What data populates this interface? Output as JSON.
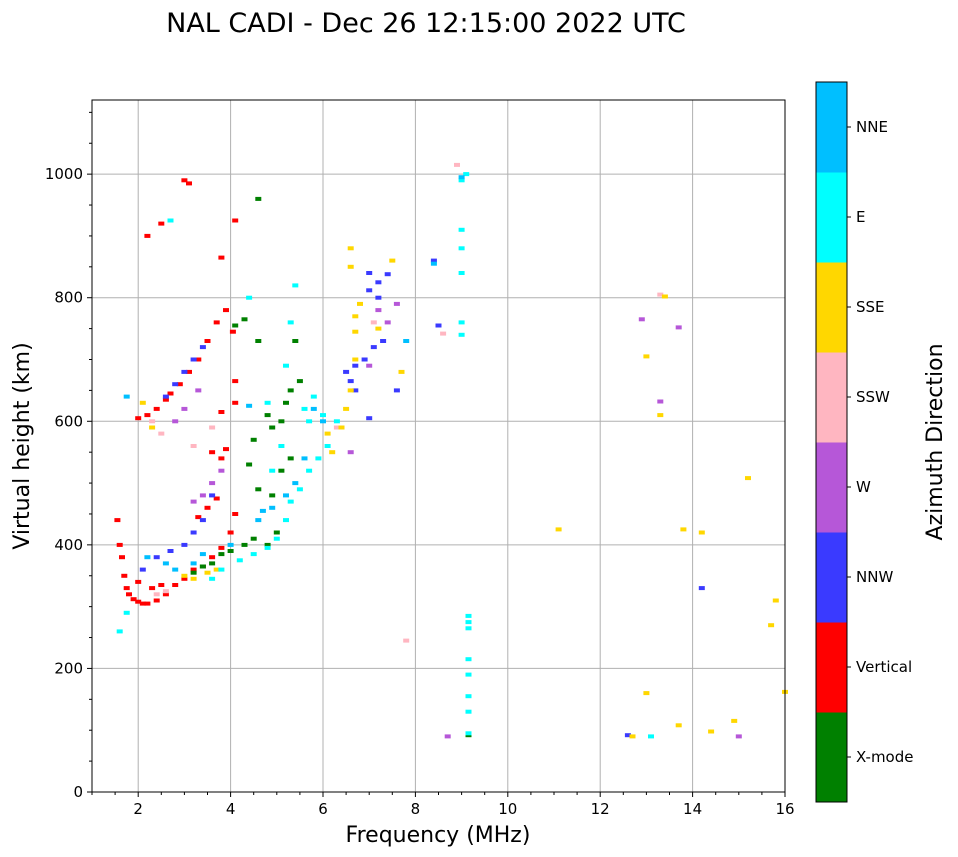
{
  "chart_data": {
    "type": "scatter",
    "title": "NAL CADI - Dec 26 12:15:00 2022 UTC",
    "xlabel": "Frequency (MHz)",
    "ylabel": "Virtual height (km)",
    "xlim": [
      1,
      16
    ],
    "ylim": [
      0,
      1120
    ],
    "xticks": [
      2,
      4,
      6,
      8,
      10,
      12,
      14,
      16
    ],
    "yticks": [
      0,
      200,
      400,
      600,
      800,
      1000
    ],
    "grid": true,
    "colorbar": {
      "label": "Azimuth Direction",
      "categories": [
        {
          "name": "X-mode",
          "color": "#008000"
        },
        {
          "name": "Vertical",
          "color": "#ff0000"
        },
        {
          "name": "NNW",
          "color": "#3a3aff"
        },
        {
          "name": "W",
          "color": "#b657d8"
        },
        {
          "name": "SSW",
          "color": "#ffb6c1"
        },
        {
          "name": "SSE",
          "color": "#ffd700"
        },
        {
          "name": "E",
          "color": "#00ffff"
        },
        {
          "name": "NNE",
          "color": "#00bfff"
        }
      ]
    },
    "series": [
      {
        "name": "Vertical",
        "points": [
          [
            1.55,
            440
          ],
          [
            1.6,
            400
          ],
          [
            1.65,
            380
          ],
          [
            1.7,
            350
          ],
          [
            1.75,
            330
          ],
          [
            1.8,
            320
          ],
          [
            1.9,
            312
          ],
          [
            2.0,
            308
          ],
          [
            2.1,
            305
          ],
          [
            2.2,
            305
          ],
          [
            2.4,
            310
          ],
          [
            2.6,
            320
          ],
          [
            2.8,
            335
          ],
          [
            3.0,
            345
          ],
          [
            3.2,
            360
          ],
          [
            3.4,
            365
          ],
          [
            3.6,
            380
          ],
          [
            3.8,
            395
          ],
          [
            4.0,
            420
          ],
          [
            4.1,
            450
          ],
          [
            2.0,
            605
          ],
          [
            2.2,
            610
          ],
          [
            2.4,
            620
          ],
          [
            2.6,
            635
          ],
          [
            2.7,
            645
          ],
          [
            2.9,
            660
          ],
          [
            3.1,
            680
          ],
          [
            3.3,
            700
          ],
          [
            3.5,
            730
          ],
          [
            3.7,
            760
          ],
          [
            3.9,
            780
          ],
          [
            3.6,
            550
          ],
          [
            3.8,
            540
          ],
          [
            3.9,
            555
          ],
          [
            3.8,
            615
          ],
          [
            4.1,
            630
          ],
          [
            4.1,
            665
          ],
          [
            4.05,
            745
          ],
          [
            4.1,
            925
          ],
          [
            3.0,
            990
          ],
          [
            3.1,
            985
          ],
          [
            2.5,
            920
          ],
          [
            2.2,
            900
          ],
          [
            3.8,
            865
          ],
          [
            3.3,
            445
          ],
          [
            3.5,
            460
          ],
          [
            3.7,
            475
          ],
          [
            2.0,
            340
          ],
          [
            2.3,
            330
          ],
          [
            2.5,
            335
          ]
        ]
      },
      {
        "name": "X-mode",
        "points": [
          [
            3.2,
            355
          ],
          [
            3.4,
            365
          ],
          [
            3.6,
            370
          ],
          [
            3.8,
            385
          ],
          [
            4.0,
            390
          ],
          [
            4.3,
            400
          ],
          [
            4.5,
            410
          ],
          [
            4.8,
            400
          ],
          [
            5.0,
            420
          ],
          [
            4.9,
            590
          ],
          [
            5.1,
            600
          ],
          [
            5.2,
            630
          ],
          [
            5.3,
            650
          ],
          [
            5.5,
            665
          ],
          [
            5.4,
            730
          ],
          [
            4.6,
            730
          ],
          [
            4.1,
            755
          ],
          [
            4.3,
            765
          ],
          [
            4.6,
            960
          ],
          [
            4.6,
            490
          ],
          [
            4.4,
            530
          ],
          [
            4.5,
            570
          ],
          [
            4.8,
            610
          ],
          [
            5.3,
            540
          ],
          [
            5.1,
            520
          ],
          [
            4.9,
            480
          ],
          [
            9.15,
            92
          ]
        ]
      },
      {
        "name": "NNW",
        "points": [
          [
            2.1,
            360
          ],
          [
            2.4,
            380
          ],
          [
            2.7,
            390
          ],
          [
            3.0,
            400
          ],
          [
            3.2,
            420
          ],
          [
            3.4,
            440
          ],
          [
            3.6,
            480
          ],
          [
            2.6,
            640
          ],
          [
            2.8,
            660
          ],
          [
            3.0,
            680
          ],
          [
            3.2,
            700
          ],
          [
            3.4,
            720
          ],
          [
            6.5,
            680
          ],
          [
            6.7,
            690
          ],
          [
            6.6,
            665
          ],
          [
            6.9,
            700
          ],
          [
            7.1,
            720
          ],
          [
            7.3,
            730
          ],
          [
            7.0,
            840
          ],
          [
            7.2,
            825
          ],
          [
            7.4,
            838
          ],
          [
            7.0,
            812
          ],
          [
            7.2,
            800
          ],
          [
            7.6,
            650
          ],
          [
            7.0,
            605
          ],
          [
            6.7,
            650
          ],
          [
            8.4,
            860
          ],
          [
            8.5,
            755
          ],
          [
            12.6,
            92
          ],
          [
            14.2,
            330
          ]
        ]
      },
      {
        "name": "W",
        "points": [
          [
            2.8,
            600
          ],
          [
            3.0,
            620
          ],
          [
            3.3,
            650
          ],
          [
            3.4,
            480
          ],
          [
            3.2,
            470
          ],
          [
            3.6,
            500
          ],
          [
            3.8,
            520
          ],
          [
            7.6,
            790
          ],
          [
            7.2,
            780
          ],
          [
            7.4,
            760
          ],
          [
            7.0,
            690
          ],
          [
            12.9,
            765
          ],
          [
            13.3,
            632
          ],
          [
            13.7,
            752
          ],
          [
            15.0,
            90
          ],
          [
            8.7,
            90
          ],
          [
            6.6,
            550
          ]
        ]
      },
      {
        "name": "SSW",
        "points": [
          [
            2.3,
            600
          ],
          [
            2.5,
            580
          ],
          [
            3.2,
            560
          ],
          [
            3.6,
            590
          ],
          [
            7.1,
            760
          ],
          [
            8.9,
            1015
          ],
          [
            7.8,
            245
          ],
          [
            8.6,
            742
          ],
          [
            13.3,
            805
          ],
          [
            6.3,
            590
          ],
          [
            2.4,
            320
          ],
          [
            2.6,
            325
          ]
        ]
      },
      {
        "name": "SSE",
        "points": [
          [
            2.1,
            630
          ],
          [
            2.3,
            590
          ],
          [
            3.0,
            350
          ],
          [
            3.2,
            345
          ],
          [
            3.5,
            355
          ],
          [
            3.7,
            360
          ],
          [
            6.2,
            550
          ],
          [
            6.4,
            590
          ],
          [
            6.5,
            620
          ],
          [
            6.6,
            650
          ],
          [
            6.7,
            700
          ],
          [
            6.7,
            745
          ],
          [
            6.8,
            790
          ],
          [
            6.6,
            880
          ],
          [
            7.5,
            860
          ],
          [
            7.2,
            750
          ],
          [
            7.7,
            680
          ],
          [
            11.1,
            425
          ],
          [
            13.0,
            705
          ],
          [
            13.3,
            610
          ],
          [
            13.4,
            802
          ],
          [
            13.8,
            425
          ],
          [
            14.2,
            420
          ],
          [
            15.2,
            508
          ],
          [
            15.7,
            270
          ],
          [
            15.8,
            310
          ],
          [
            16.0,
            162
          ],
          [
            13.0,
            160
          ],
          [
            13.7,
            108
          ],
          [
            14.9,
            115
          ],
          [
            14.4,
            98
          ],
          [
            12.7,
            90
          ],
          [
            6.6,
            850
          ],
          [
            6.1,
            580
          ],
          [
            6.7,
            770
          ]
        ]
      },
      {
        "name": "E",
        "points": [
          [
            1.6,
            260
          ],
          [
            1.75,
            290
          ],
          [
            3.6,
            345
          ],
          [
            3.8,
            360
          ],
          [
            4.2,
            375
          ],
          [
            4.5,
            385
          ],
          [
            4.8,
            395
          ],
          [
            5.0,
            410
          ],
          [
            5.2,
            440
          ],
          [
            5.3,
            470
          ],
          [
            5.5,
            490
          ],
          [
            5.7,
            520
          ],
          [
            5.9,
            540
          ],
          [
            6.1,
            560
          ],
          [
            6.3,
            600
          ],
          [
            5.6,
            620
          ],
          [
            5.8,
            640
          ],
          [
            6.0,
            610
          ],
          [
            5.2,
            690
          ],
          [
            5.3,
            760
          ],
          [
            5.4,
            820
          ],
          [
            4.8,
            630
          ],
          [
            9.1,
            1000
          ],
          [
            9.0,
            990
          ],
          [
            9.0,
            910
          ],
          [
            9.0,
            880
          ],
          [
            9.0,
            840
          ],
          [
            9.0,
            760
          ],
          [
            9.0,
            740
          ],
          [
            9.15,
            285
          ],
          [
            9.15,
            275
          ],
          [
            9.15,
            265
          ],
          [
            9.15,
            215
          ],
          [
            9.15,
            190
          ],
          [
            9.15,
            155
          ],
          [
            9.15,
            130
          ],
          [
            9.15,
            95
          ],
          [
            13.1,
            90
          ],
          [
            2.7,
            925
          ],
          [
            4.4,
            800
          ],
          [
            5.7,
            600
          ],
          [
            5.1,
            560
          ],
          [
            4.9,
            520
          ]
        ]
      },
      {
        "name": "NNE",
        "points": [
          [
            1.75,
            640
          ],
          [
            2.2,
            380
          ],
          [
            2.6,
            370
          ],
          [
            2.8,
            360
          ],
          [
            3.2,
            370
          ],
          [
            3.4,
            385
          ],
          [
            4.0,
            400
          ],
          [
            4.6,
            440
          ],
          [
            4.9,
            460
          ],
          [
            5.2,
            480
          ],
          [
            5.4,
            500
          ],
          [
            5.6,
            540
          ],
          [
            5.8,
            620
          ],
          [
            6.0,
            600
          ],
          [
            8.4,
            855
          ],
          [
            9.0,
            995
          ],
          [
            7.8,
            730
          ],
          [
            4.4,
            625
          ],
          [
            4.7,
            455
          ]
        ]
      }
    ]
  }
}
